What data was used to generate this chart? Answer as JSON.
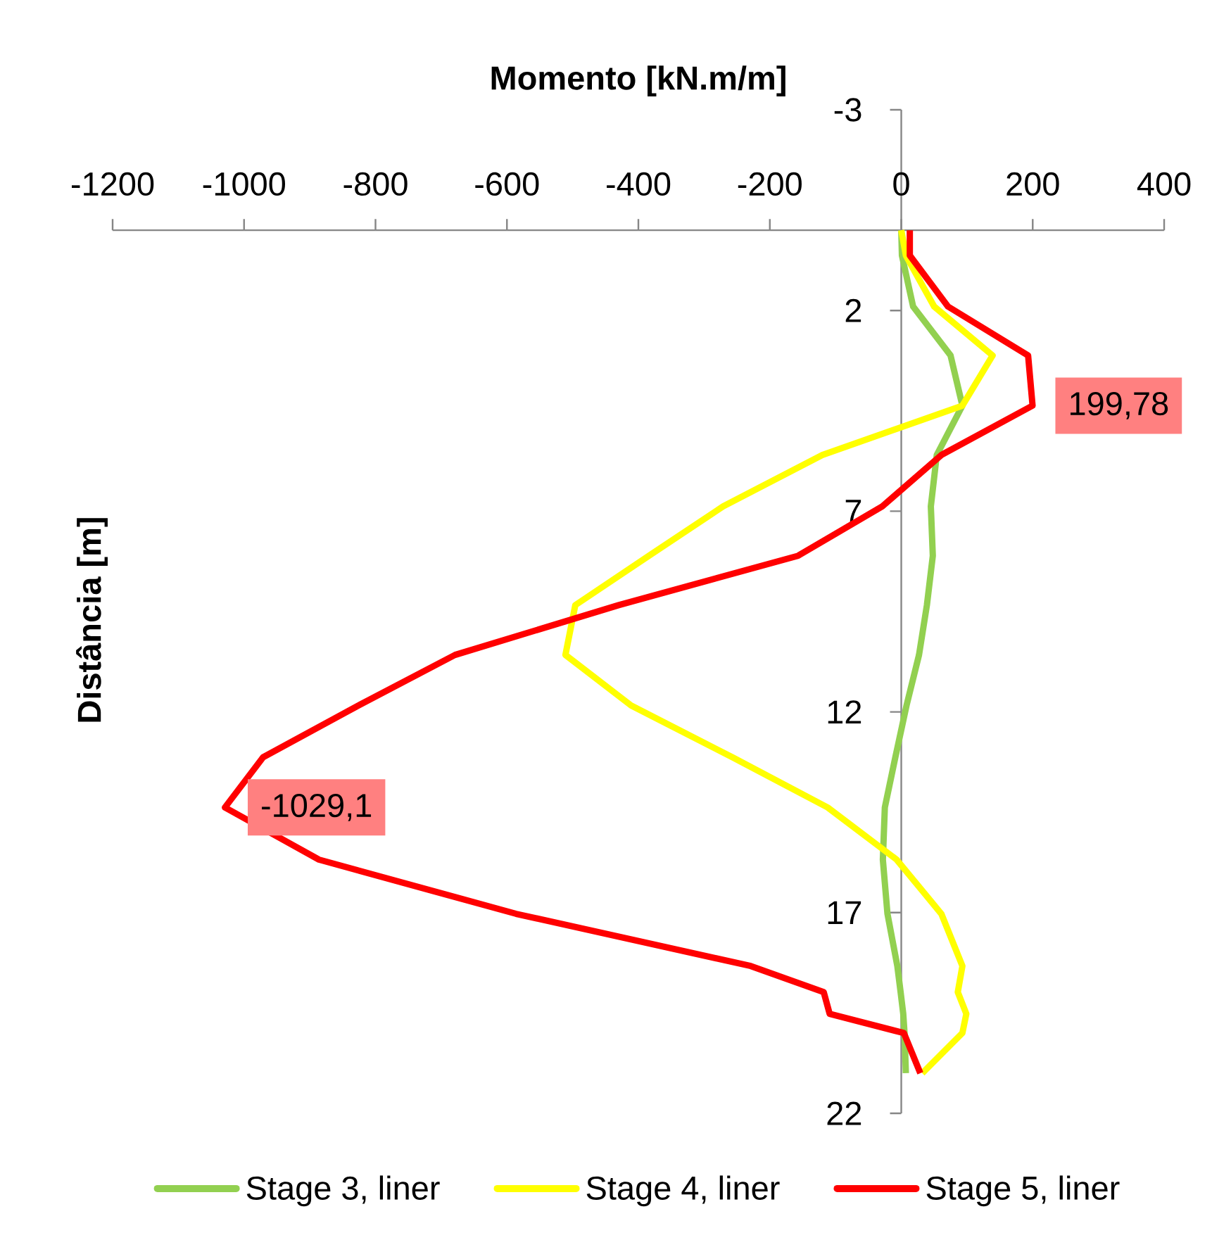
{
  "chart_data": {
    "type": "line",
    "xlabel": "Momento [kN.m/m]",
    "ylabel": "Distância [m]",
    "xlim": [
      -1200,
      400
    ],
    "xticks": [
      -1200,
      -1000,
      -800,
      -600,
      -400,
      -200,
      0,
      200,
      400
    ],
    "ylim": [
      22,
      -3
    ],
    "yticks": [
      -3,
      2,
      7,
      12,
      17,
      22
    ],
    "legend": "bottom",
    "series": [
      {
        "name": "Stage 3, liner",
        "color": "#92d050",
        "x": [
          0,
          1,
          18,
          75,
          93,
          54,
          45,
          48,
          39,
          27,
          8,
          -9,
          -25,
          -28,
          -21,
          -6,
          -1,
          3,
          5,
          7
        ],
        "values": [
          0,
          0.63,
          1.9,
          3.12,
          4.37,
          5.6,
          6.88,
          8.11,
          9.34,
          10.58,
          11.84,
          13.13,
          14.38,
          15.68,
          17.03,
          18.33,
          18.98,
          19.52,
          20.0,
          21.0
        ]
      },
      {
        "name": "Stage 4, liner",
        "color": "#ffff00",
        "x": [
          0,
          7,
          50,
          139,
          93,
          -120,
          -271,
          -384,
          -496,
          -511,
          -411,
          -257,
          -112,
          -7,
          61,
          93,
          86,
          99,
          93,
          32
        ],
        "values": [
          0,
          0.63,
          1.9,
          3.12,
          4.37,
          5.6,
          6.88,
          8.11,
          9.34,
          10.58,
          11.84,
          13.13,
          14.38,
          15.68,
          17.03,
          18.33,
          18.98,
          19.52,
          20.0,
          21.0
        ]
      },
      {
        "name": "Stage 5, liner",
        "color": "#ff0000",
        "x": [
          13,
          13,
          71,
          193,
          199.78,
          61,
          -29,
          -157,
          -430,
          -679,
          -826,
          -971,
          -1029.1,
          -886,
          -586,
          -229,
          -118,
          -109,
          4,
          29
        ],
        "values": [
          0,
          0.63,
          1.9,
          3.12,
          4.37,
          5.6,
          6.88,
          8.11,
          9.34,
          10.58,
          11.84,
          13.13,
          14.38,
          15.68,
          17.03,
          18.33,
          18.98,
          19.52,
          20.0,
          21.0
        ]
      }
    ],
    "annotations": [
      {
        "text": "199,78",
        "x": 199.78,
        "y": 4.37
      },
      {
        "text": "-1029,1",
        "x": -1029.1,
        "y": 14.38
      }
    ]
  }
}
